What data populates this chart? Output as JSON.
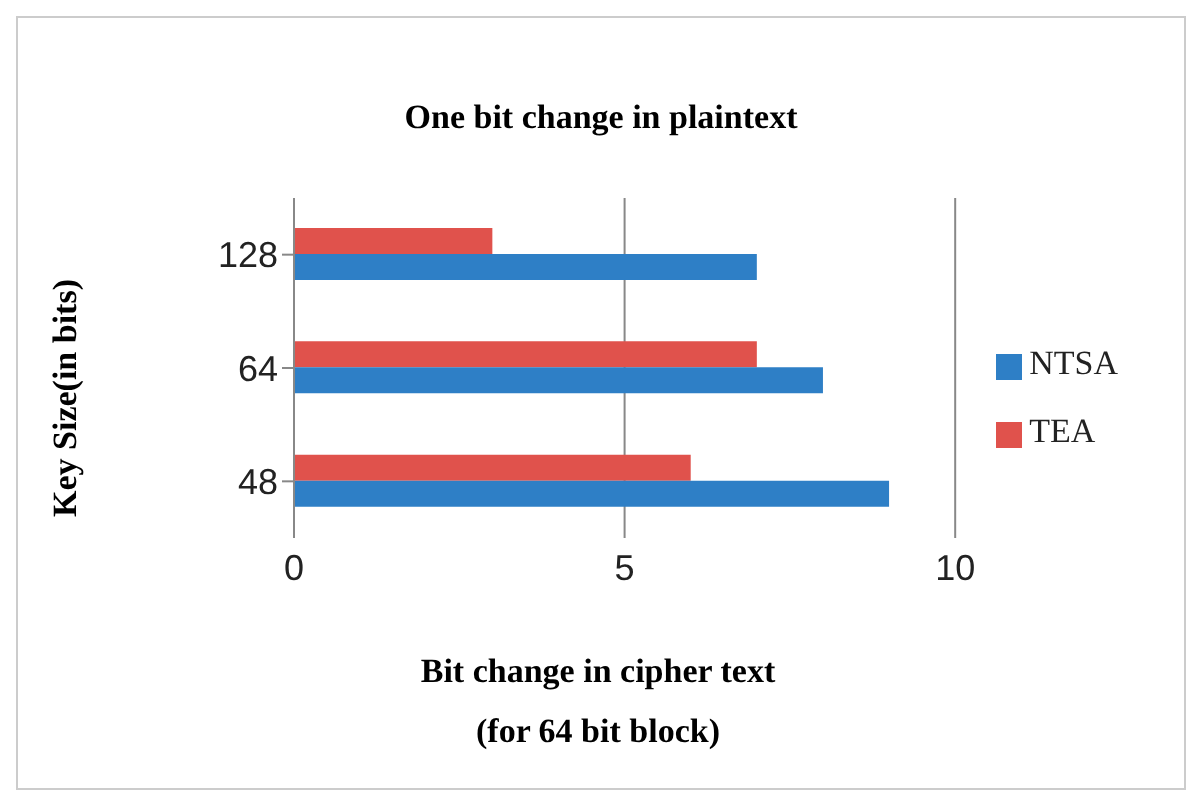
{
  "chart_data": {
    "type": "bar",
    "orientation": "horizontal",
    "title": "One bit change in plaintext",
    "xlabel": "Bit change in cipher text\n(for 64 bit block)",
    "ylabel": "Key Size(in bits)",
    "categories": [
      "128",
      "64",
      "48"
    ],
    "series": [
      {
        "name": "TEA",
        "color": "#e0524c",
        "values": [
          3,
          7,
          6
        ]
      },
      {
        "name": "NTSA",
        "color": "#2e7fc6",
        "values": [
          7,
          8,
          9
        ]
      }
    ],
    "xlim": [
      0,
      10
    ],
    "xticks": [
      0,
      5,
      10
    ],
    "grid": "x",
    "legend": "right"
  }
}
